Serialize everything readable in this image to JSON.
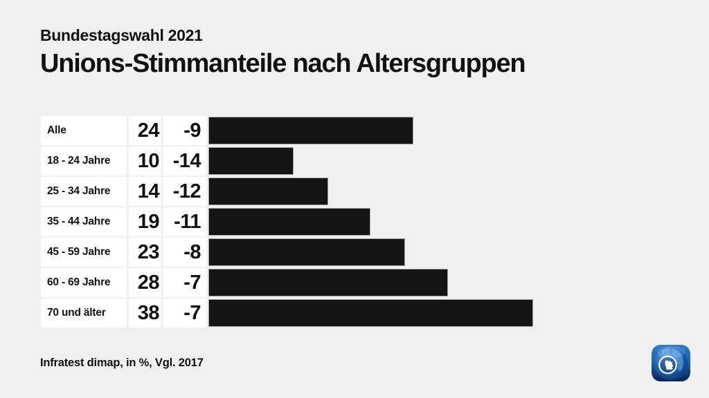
{
  "header": {
    "kicker": "Bundestagswahl 2021",
    "title": "Unions-Stimmanteile nach Altersgruppen"
  },
  "footer": {
    "source": "Infratest dimap, in %, Vgl. 2017"
  },
  "logo": {
    "name": "tagesschau-globe-logo"
  },
  "colors": {
    "background": "#f0f0f0",
    "bar": "#141414",
    "bar_border": "#9c9c9c",
    "cell": "#ffffff",
    "text": "#111111",
    "logo_blue_light": "#2e7fd2",
    "logo_blue_dark": "#0b2350"
  },
  "chart_data": {
    "type": "bar",
    "orientation": "horizontal",
    "title": "Unions-Stimmanteile nach Altersgruppen",
    "subtitle": "Bundestagswahl 2021",
    "unit": "%",
    "comparison_label": "Vgl. 2017",
    "source": "Infratest dimap",
    "categories": [
      "Alle",
      "18 - 24 Jahre",
      "25 - 34 Jahre",
      "35 - 44 Jahre",
      "45 - 59 Jahre",
      "60 - 69 Jahre",
      "70 und älter"
    ],
    "values": [
      24,
      10,
      14,
      19,
      23,
      28,
      38
    ],
    "diffs": [
      -9,
      -14,
      -12,
      -11,
      -8,
      -7,
      -7
    ],
    "xlim": [
      0,
      38
    ],
    "grid": false,
    "legend": false
  }
}
